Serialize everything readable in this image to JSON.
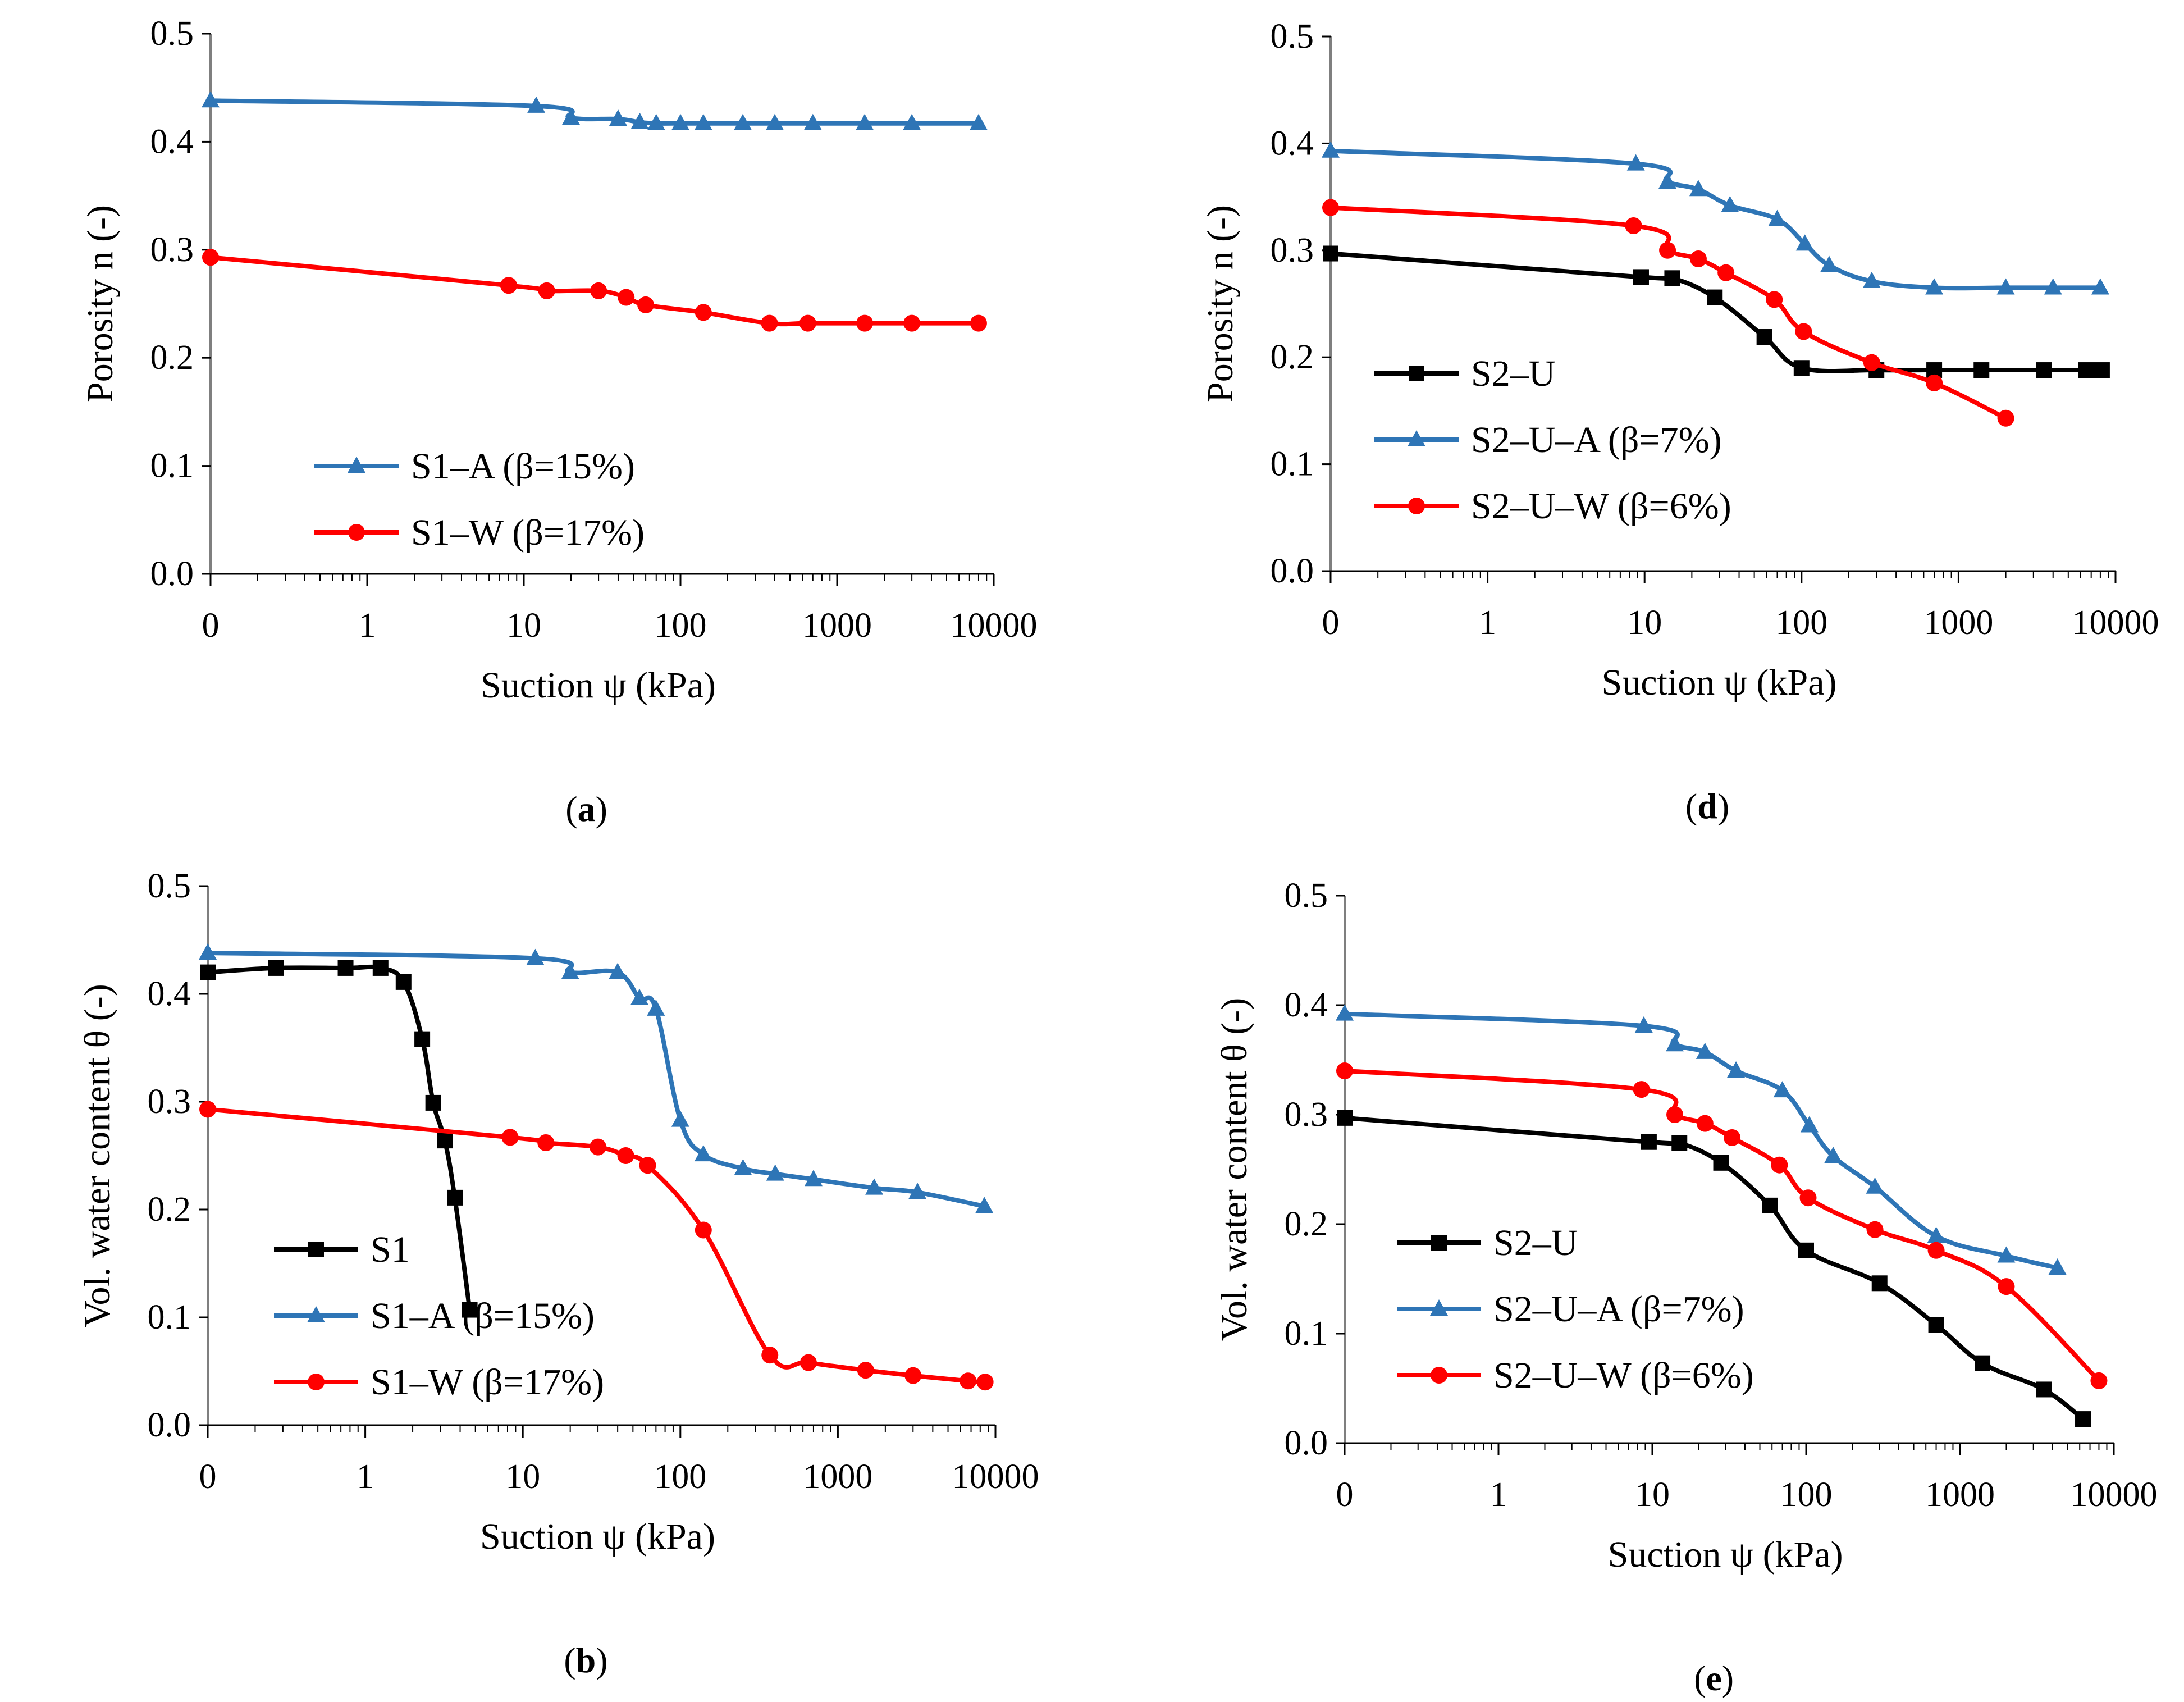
{
  "chart_data": [
    {
      "id": "a",
      "type": "line",
      "caption": "a",
      "xlabel": "Suction ψ (kPa)",
      "ylabel": "Porosity n (-)",
      "xscale": "log",
      "x_tick_labels": [
        "0",
        "1",
        "10",
        "100",
        "1000",
        "10000"
      ],
      "y_tick_labels": [
        "0.0",
        "0.1",
        "0.2",
        "0.3",
        "0.4",
        "0.5"
      ],
      "ylim": [
        0,
        0.5
      ],
      "legend_position": "lower-left",
      "series": [
        {
          "name": "S1–A (β=15%)",
          "color": "#2e75b6",
          "marker": "triangle",
          "x": [
            0.1,
            12,
            20,
            40,
            55,
            70,
            100,
            140,
            250,
            400,
            700,
            1500,
            3000,
            8000
          ],
          "y": [
            0.438,
            0.433,
            0.422,
            0.421,
            0.418,
            0.417,
            0.417,
            0.417,
            0.417,
            0.417,
            0.417,
            0.417,
            0.417,
            0.417
          ]
        },
        {
          "name": "S1–W (β=17%)",
          "color": "#ff0000",
          "marker": "circle",
          "x": [
            0.1,
            8,
            14,
            30,
            45,
            60,
            140,
            370,
            650,
            1500,
            3000,
            8000
          ],
          "y": [
            0.293,
            0.267,
            0.262,
            0.262,
            0.256,
            0.249,
            0.242,
            0.232,
            0.232,
            0.232,
            0.232,
            0.232
          ]
        }
      ]
    },
    {
      "id": "d",
      "type": "line",
      "caption": "d",
      "xlabel": "Suction ψ (kPa)",
      "ylabel": "Porosity n (-)",
      "xscale": "log",
      "x_tick_labels": [
        "0",
        "1",
        "10",
        "100",
        "1000",
        "10000"
      ],
      "y_tick_labels": [
        "0.0",
        "0.1",
        "0.2",
        "0.3",
        "0.4",
        "0.5"
      ],
      "ylim": [
        0,
        0.5
      ],
      "legend_position": "lower-left",
      "series": [
        {
          "name": "S2–U",
          "color": "#000000",
          "marker": "square",
          "x": [
            0.1,
            9.5,
            15,
            28,
            58,
            100,
            300,
            700,
            1400,
            3500,
            6500,
            8200
          ],
          "y": [
            0.297,
            0.275,
            0.274,
            0.256,
            0.219,
            0.19,
            0.188,
            0.188,
            0.188,
            0.188,
            0.188,
            0.188
          ]
        },
        {
          "name": "S2–U–A (β=7%)",
          "color": "#2e75b6",
          "marker": "triangle",
          "x": [
            0.1,
            8.8,
            14,
            22,
            35,
            70,
            105,
            150,
            280,
            700,
            2000,
            4000,
            8000
          ],
          "y": [
            0.393,
            0.381,
            0.364,
            0.357,
            0.342,
            0.329,
            0.306,
            0.286,
            0.271,
            0.265,
            0.265,
            0.265,
            0.265
          ]
        },
        {
          "name": "S2–U–W (β=6%)",
          "color": "#ff0000",
          "marker": "circle",
          "x": [
            0.1,
            8.5,
            14,
            22,
            33,
            67,
            103,
            280,
            700,
            2000
          ],
          "y": [
            0.34,
            0.323,
            0.3,
            0.292,
            0.279,
            0.254,
            0.224,
            0.195,
            0.176,
            0.143
          ]
        }
      ]
    },
    {
      "id": "b",
      "type": "line",
      "caption": "b",
      "xlabel": "Suction  ψ (kPa)",
      "ylabel": "Vol. water content  θ (-)",
      "xscale": "log",
      "x_tick_labels": [
        "0",
        "1",
        "10",
        "100",
        "1000",
        "10000"
      ],
      "y_tick_labels": [
        "0.0",
        "0.1",
        "0.2",
        "0.3",
        "0.4",
        "0.5"
      ],
      "ylim": [
        0,
        0.5
      ],
      "legend_position": "lower-left",
      "series": [
        {
          "name": "S1",
          "color": "#000000",
          "marker": "square",
          "x": [
            0.1,
            0.27,
            0.75,
            1.25,
            1.75,
            2.3,
            2.7,
            3.2,
            3.7,
            4.6
          ],
          "y": [
            0.42,
            0.424,
            0.424,
            0.424,
            0.411,
            0.358,
            0.299,
            0.264,
            0.211,
            0.107
          ]
        },
        {
          "name": "S1–A (β=15%)",
          "color": "#2e75b6",
          "marker": "triangle",
          "x": [
            0.1,
            12,
            20,
            40,
            55,
            70,
            100,
            140,
            250,
            400,
            700,
            1700,
            3200,
            8500
          ],
          "y": [
            0.438,
            0.433,
            0.42,
            0.42,
            0.396,
            0.386,
            0.283,
            0.251,
            0.238,
            0.233,
            0.228,
            0.22,
            0.216,
            0.203
          ]
        },
        {
          "name": "S1–W (β=17%)",
          "color": "#ff0000",
          "marker": "circle",
          "x": [
            0.1,
            8.3,
            14,
            30,
            45,
            62,
            140,
            370,
            650,
            1500,
            3000,
            6700,
            8600
          ],
          "y": [
            0.293,
            0.267,
            0.262,
            0.258,
            0.25,
            0.241,
            0.181,
            0.065,
            0.058,
            0.051,
            0.046,
            0.041,
            0.04
          ]
        }
      ]
    },
    {
      "id": "e",
      "type": "line",
      "caption": "e",
      "xlabel": "Suction ψ (kPa)",
      "ylabel": "Vol. water content θ (-)",
      "xscale": "log",
      "x_tick_labels": [
        "0",
        "1",
        "10",
        "100",
        "1000",
        "10000"
      ],
      "y_tick_labels": [
        "0.0",
        "0.1",
        "0.2",
        "0.3",
        "0.4",
        "0.5"
      ],
      "ylim": [
        0,
        0.5
      ],
      "legend_position": "lower-left",
      "series": [
        {
          "name": "S2–U",
          "color": "#000000",
          "marker": "square",
          "x": [
            0.1,
            9.5,
            15,
            28,
            58,
            100,
            300,
            700,
            1400,
            3500,
            6300
          ],
          "y": [
            0.297,
            0.275,
            0.274,
            0.256,
            0.217,
            0.176,
            0.146,
            0.108,
            0.073,
            0.049,
            0.022
          ]
        },
        {
          "name": "S2–U–A (β=7%)",
          "color": "#2e75b6",
          "marker": "triangle",
          "x": [
            0.1,
            8.8,
            14,
            22,
            35,
            70,
            105,
            150,
            280,
            700,
            2000,
            4300
          ],
          "y": [
            0.392,
            0.381,
            0.364,
            0.357,
            0.34,
            0.322,
            0.29,
            0.262,
            0.234,
            0.189,
            0.171,
            0.16
          ]
        },
        {
          "name": "S2–U–W (β=6%)",
          "color": "#ff0000",
          "marker": "circle",
          "x": [
            0.1,
            8.5,
            14,
            22,
            33,
            67,
            103,
            280,
            700,
            2000,
            8000
          ],
          "y": [
            0.34,
            0.323,
            0.3,
            0.292,
            0.279,
            0.254,
            0.224,
            0.195,
            0.176,
            0.143,
            0.057
          ]
        }
      ]
    }
  ]
}
